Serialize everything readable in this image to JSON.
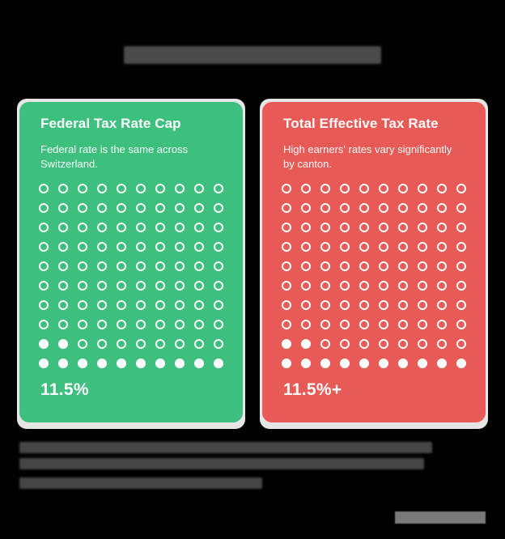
{
  "title": {
    "text": "",
    "redacted": true
  },
  "colors": {
    "background": "#000000",
    "federal_card": "#3dbf7d",
    "total_card": "#e85a56",
    "card_frame": "#e6e6e6",
    "text": "#ffffff",
    "redacted_block": "#4a4a4a"
  },
  "cards": [
    {
      "id": "federal",
      "title": "Federal Tax Rate Cap",
      "description": "Federal rate is the same across Switzerland.",
      "value": "11.5%",
      "grid": {
        "rows": 10,
        "cols": 10,
        "filled": 12,
        "fill_from": "bottom-left"
      }
    },
    {
      "id": "total",
      "title": "Total Effective Tax Rate",
      "description": "High earners' rates vary significantly by canton.",
      "value": "11.5%+",
      "grid": {
        "rows": 10,
        "cols": 10,
        "filled": 12,
        "fill_from": "bottom-left"
      }
    }
  ],
  "caption": {
    "text": "",
    "redacted": true,
    "lines": 3
  },
  "watermark": {
    "redacted": true
  }
}
